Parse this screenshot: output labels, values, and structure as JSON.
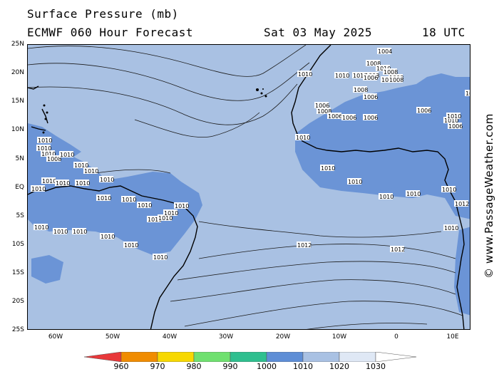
{
  "header": {
    "line1": "Surface Pressure (mb)",
    "model": "ECMWF 060 Hour Forecast",
    "valid_date": "Sat 03 May 2025",
    "valid_time": "18 UTC"
  },
  "axes": {
    "lat_labels": [
      "25N",
      "20N",
      "15N",
      "10N",
      "5N",
      "EQ",
      "5S",
      "10S",
      "15S",
      "20S",
      "25S"
    ],
    "lon_labels": [
      "60W",
      "50W",
      "40W",
      "30W",
      "20W",
      "10W",
      "0",
      "10E"
    ]
  },
  "watermark": "© www.PassageWeather.com",
  "legend": {
    "values": [
      "960",
      "970",
      "980",
      "990",
      "1000",
      "1010",
      "1020",
      "1030"
    ],
    "colors": [
      "#e8383a",
      "#f08c00",
      "#f7d800",
      "#6fe06f",
      "#2fbf8f",
      "#5e8ed6",
      "#a9c1e3",
      "#dfe8f5"
    ]
  },
  "colors": {
    "sea": "#a9c1e3",
    "low_area": "#6b94d6",
    "land_outline": "#000000",
    "contour": "#1a1a1a"
  },
  "isobar_labels": [
    "1004",
    "1008",
    "1010",
    "1008",
    "1008",
    "1010",
    "1010",
    "1006",
    "1006",
    "1008",
    "1008",
    "1010",
    "1010",
    "1008",
    "1006",
    "1006",
    "1008",
    "1006",
    "1006",
    "1006",
    "1006",
    "1010",
    "1010",
    "1006",
    "1010",
    "1010",
    "1010",
    "1008",
    "1010",
    "1010",
    "1010",
    "1010",
    "1010",
    "1010",
    "1010",
    "1010",
    "1010",
    "1010",
    "1010",
    "1010",
    "1010",
    "1010",
    "1010",
    "1010",
    "1010",
    "1010",
    "1010",
    "1010",
    "1010",
    "1010",
    "1010",
    "1010",
    "1010",
    "1010",
    "1010",
    "1010",
    "1012",
    "1012",
    "1012"
  ]
}
